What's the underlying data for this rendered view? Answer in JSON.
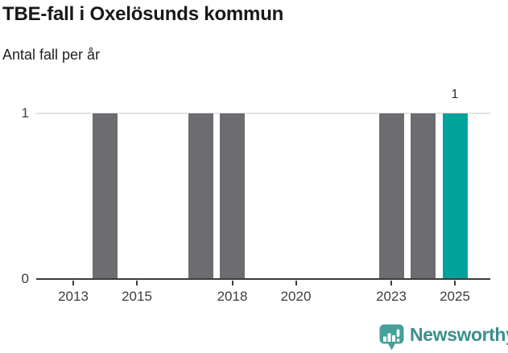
{
  "header": {
    "title": "TBE-fall i Oxelösunds kommun",
    "subtitle": "Antal fall per år"
  },
  "chart_data": {
    "type": "bar",
    "title": "TBE-fall i Oxelösunds kommun",
    "subtitle": "Antal fall per år",
    "xlabel": "",
    "ylabel": "Antal fall per år",
    "categories": [
      "2013",
      "2014",
      "2015",
      "2016",
      "2017",
      "2018",
      "2019",
      "2020",
      "2021",
      "2022",
      "2023",
      "2024",
      "2025"
    ],
    "values": [
      0,
      1,
      0,
      0,
      1,
      1,
      0,
      0,
      0,
      0,
      1,
      1,
      1
    ],
    "ylim": [
      0,
      1
    ],
    "y_ticks": [
      {
        "value": 0,
        "label": "0"
      },
      {
        "value": 1,
        "label": "1"
      }
    ],
    "x_tick_labels": [
      "2013",
      "2015",
      "2018",
      "2020",
      "2023",
      "2025"
    ],
    "grid": "horizontal-gridline-at-1",
    "legend": "none",
    "bar_color": "#6d6c71",
    "highlight_color": "#00a39a",
    "highlight_category": "2025",
    "data_labels": [
      {
        "category": "2025",
        "text": "1"
      }
    ]
  },
  "footer": {
    "brand": "Newsworthy",
    "logo_icon": "newsworthy-speech-bubble-bar-chart-icon",
    "brand_color": "#3a8f8b",
    "icon_color": "#43a09a"
  }
}
